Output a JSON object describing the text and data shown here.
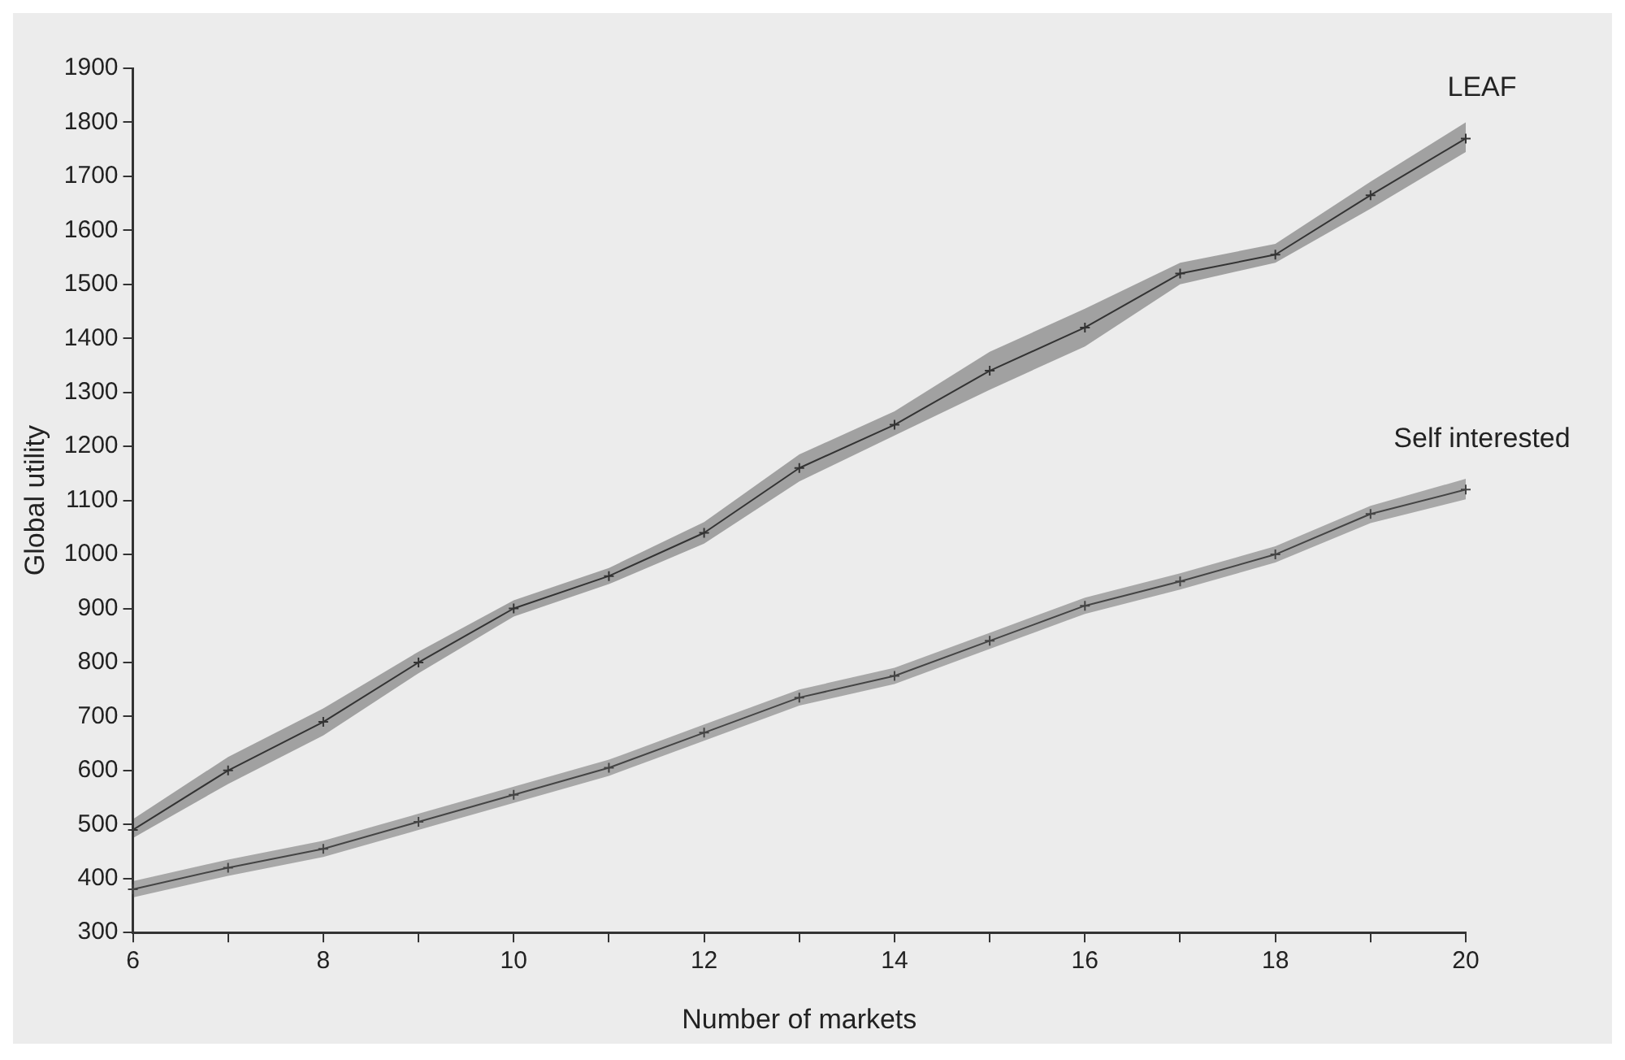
{
  "chart_data": {
    "type": "line",
    "xlabel": "Number of markets",
    "ylabel": "Global utility",
    "x": [
      6,
      7,
      8,
      9,
      10,
      11,
      12,
      13,
      14,
      15,
      16,
      17,
      18,
      19,
      20
    ],
    "xlim": [
      6,
      20
    ],
    "xticks": [
      6,
      {
        "value": 7,
        "label": null
      },
      8,
      {
        "value": 9,
        "label": null
      },
      10,
      {
        "value": 11,
        "label": null
      },
      12,
      {
        "value": 13,
        "label": null
      },
      14,
      {
        "value": 15,
        "label": null
      },
      16,
      {
        "value": 17,
        "label": null
      },
      18,
      {
        "value": 19,
        "label": null
      },
      20
    ],
    "ylim": [
      300,
      1900
    ],
    "yticks": [
      300,
      400,
      500,
      600,
      700,
      800,
      900,
      1000,
      1100,
      1200,
      1300,
      1400,
      1500,
      1600,
      1700,
      1800,
      1900
    ],
    "grid": false,
    "legend": false,
    "marker": "cross",
    "line_style": "solid",
    "series": [
      {
        "name": "LEAF",
        "color": "#333333",
        "values": [
          490,
          600,
          690,
          800,
          900,
          960,
          1040,
          1160,
          1240,
          1340,
          1420,
          1520,
          1555,
          1665,
          1770
        ],
        "lower": [
          475,
          575,
          665,
          780,
          885,
          945,
          1020,
          1135,
          1220,
          1305,
          1385,
          1500,
          1540,
          1640,
          1745
        ],
        "upper": [
          510,
          625,
          715,
          820,
          915,
          975,
          1060,
          1185,
          1265,
          1375,
          1455,
          1540,
          1575,
          1690,
          1800
        ]
      },
      {
        "name": "Self interested",
        "color": "#444444",
        "values": [
          380,
          420,
          455,
          505,
          555,
          605,
          670,
          735,
          775,
          840,
          905,
          950,
          1000,
          1075,
          1120
        ],
        "lower": [
          365,
          405,
          440,
          490,
          540,
          590,
          655,
          720,
          760,
          825,
          890,
          935,
          985,
          1058,
          1102
        ],
        "upper": [
          395,
          435,
          470,
          520,
          570,
          620,
          685,
          750,
          790,
          855,
          920,
          965,
          1015,
          1090,
          1140
        ]
      }
    ]
  }
}
